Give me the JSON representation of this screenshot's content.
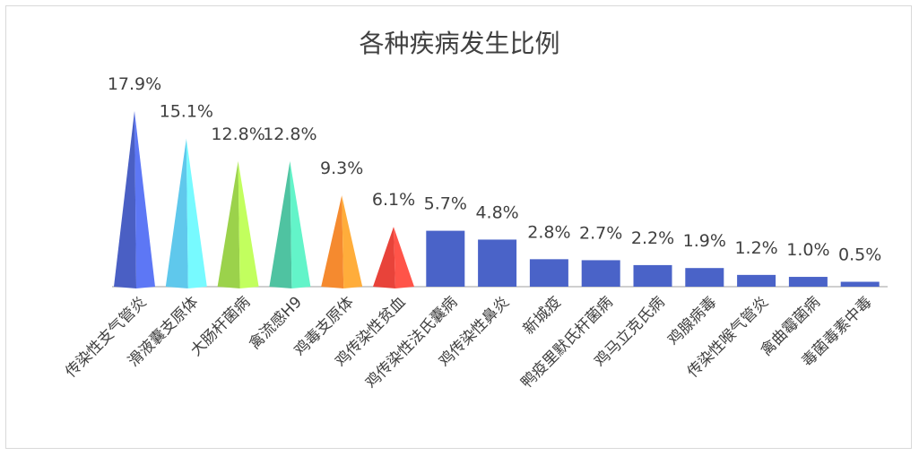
{
  "chart_data": {
    "type": "bar",
    "title": "各种疾病发生比例",
    "categories": [
      "传染性支气管炎",
      "滑液囊支原体",
      "大肠杆菌病",
      "禽流感H9",
      "鸡毒支原体",
      "鸡传染性贫血",
      "鸡传染性法氏囊病",
      "鸡传染性鼻炎",
      "新城疫",
      "鸭疫里默氏杆菌病",
      "鸡马立克氏病",
      "鸡腺病毒",
      "传染性喉气管炎",
      "禽曲霉菌病",
      "毒菌毒素中毒"
    ],
    "values": [
      17.9,
      15.1,
      12.8,
      12.8,
      9.3,
      6.1,
      5.7,
      4.8,
      2.8,
      2.7,
      2.2,
      1.9,
      1.2,
      1.0,
      0.5
    ],
    "value_labels": [
      "17.9%",
      "15.1%",
      "12.8%",
      "12.8%",
      "9.3%",
      "6.1%",
      "5.7%",
      "4.8%",
      "2.8%",
      "2.7%",
      "2.2%",
      "1.9%",
      "1.2%",
      "1.0%",
      "0.5%"
    ],
    "shapes": [
      "cone",
      "cone",
      "cone",
      "cone",
      "cone",
      "cone",
      "bar",
      "bar",
      "bar",
      "bar",
      "bar",
      "bar",
      "bar",
      "bar",
      "bar"
    ],
    "colors": [
      "#4a5fc4",
      "#5fc8ec",
      "#9bd24b",
      "#4fc3a1",
      "#f58a2f",
      "#e8433a",
      "#4a63c8",
      "#4a63c8",
      "#4a63c8",
      "#4a63c8",
      "#4a63c8",
      "#4a63c8",
      "#4a63c8",
      "#4a63c8",
      "#4a63c8"
    ],
    "ylim": [
      0,
      17.9
    ],
    "grid": false,
    "legend": "none"
  }
}
